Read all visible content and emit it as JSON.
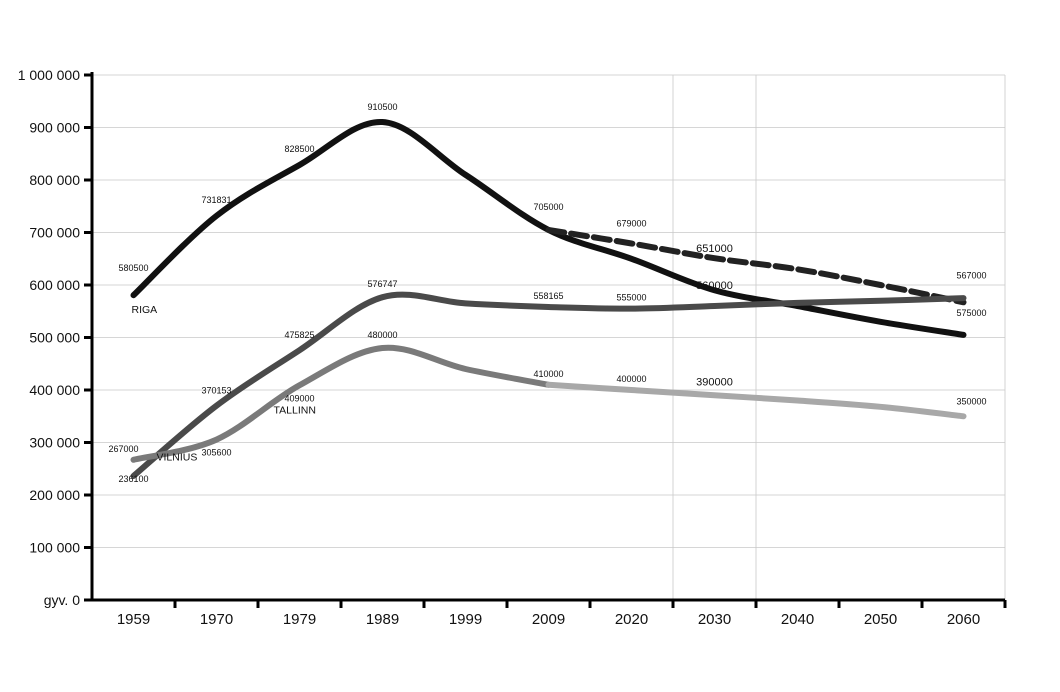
{
  "chart_data": {
    "type": "line",
    "categories": [
      "1959",
      "1970",
      "1979",
      "1989",
      "1999",
      "2009",
      "2020",
      "2030",
      "2040",
      "2050",
      "2060"
    ],
    "ylim": [
      0,
      1000000
    ],
    "y_ticks": [
      {
        "value": 0,
        "label": "gyv.  0"
      },
      {
        "value": 100000,
        "label": "100 000"
      },
      {
        "value": 200000,
        "label": "200 000"
      },
      {
        "value": 300000,
        "label": "300 000"
      },
      {
        "value": 400000,
        "label": "400 000"
      },
      {
        "value": 500000,
        "label": "500 000"
      },
      {
        "value": 600000,
        "label": "600 000"
      },
      {
        "value": 700000,
        "label": "700 000"
      },
      {
        "value": 800000,
        "label": "800 000"
      },
      {
        "value": 900000,
        "label": "900 000"
      },
      {
        "value": 1000000,
        "label": "1 000 000"
      }
    ],
    "grid": true,
    "series": [
      {
        "name": "RIGA",
        "color": "#111111",
        "style": "solid",
        "x": [
          1959,
          1970,
          1979,
          1989,
          1999,
          2009,
          2020,
          2030,
          2040,
          2050,
          2060
        ],
        "values": [
          580500,
          731831,
          828500,
          910500,
          810000,
          705000,
          650000,
          590000,
          560000,
          530000,
          505000
        ]
      },
      {
        "name": "",
        "color": "#222222",
        "style": "dashed",
        "x": [
          2009,
          2020,
          2030,
          2040,
          2050,
          2060
        ],
        "values": [
          705000,
          679000,
          651000,
          630000,
          600000,
          567000
        ]
      },
      {
        "name": "VILNIUS",
        "color": "#4a4a4a",
        "style": "solid",
        "x": [
          1959,
          1970,
          1979,
          1989,
          1999,
          2009,
          2020,
          2030,
          2040,
          2050,
          2060
        ],
        "values": [
          236100,
          370153,
          475825,
          576747,
          565000,
          558165,
          555000,
          560000,
          566000,
          570000,
          575000
        ]
      },
      {
        "name": "TALLINN",
        "color": "#7a7a7a",
        "style": "solid",
        "x": [
          1959,
          1970,
          1979,
          1989,
          1999,
          2009
        ],
        "values": [
          267000,
          305600,
          409000,
          480000,
          440000,
          410000
        ]
      },
      {
        "name": "",
        "color": "#a8a8a8",
        "style": "solid",
        "x": [
          2009,
          2020,
          2030,
          2040,
          2050,
          2060
        ],
        "values": [
          410000,
          400000,
          390000,
          380000,
          368000,
          350000
        ]
      }
    ],
    "data_labels": [
      {
        "text": "580500",
        "x": 1959,
        "y": 580500
      },
      {
        "text": "731831",
        "x": 1970,
        "y": 731831
      },
      {
        "text": "828500",
        "x": 1979,
        "y": 828500
      },
      {
        "text": "910500",
        "x": 1989,
        "y": 910500
      },
      {
        "text": "705000",
        "x": 2009,
        "y": 705000
      },
      {
        "text": "679000",
        "x": 2020,
        "y": 679000
      },
      {
        "text": "651000",
        "x": 2030,
        "y": 651000
      },
      {
        "text": "567000",
        "x": 2060,
        "y": 567000
      },
      {
        "text": "575000",
        "x": 2060,
        "y": 575000
      },
      {
        "text": "560000",
        "x": 2030,
        "y": 560000
      },
      {
        "text": "576747",
        "x": 1989,
        "y": 576747
      },
      {
        "text": "558165",
        "x": 2009,
        "y": 558165
      },
      {
        "text": "555000",
        "x": 2020,
        "y": 555000
      },
      {
        "text": "475825",
        "x": 1979,
        "y": 475825
      },
      {
        "text": "370153",
        "x": 1970,
        "y": 370153
      },
      {
        "text": "480000",
        "x": 1989,
        "y": 480000
      },
      {
        "text": "410000",
        "x": 2009,
        "y": 410000
      },
      {
        "text": "400000",
        "x": 2020,
        "y": 400000
      },
      {
        "text": "390000",
        "x": 2030,
        "y": 390000
      },
      {
        "text": "350000",
        "x": 2060,
        "y": 350000
      },
      {
        "text": "409000",
        "x": 1979,
        "y": 409000
      },
      {
        "text": "267000",
        "x": 1959,
        "y": 267000
      },
      {
        "text": "305600",
        "x": 1970,
        "y": 305600
      },
      {
        "text": "236100",
        "x": 1959,
        "y": 236100
      }
    ],
    "series_labels": [
      {
        "text": "RIGA",
        "x": 1959,
        "y": 580500
      },
      {
        "text": "VILNIUS",
        "x": 1970,
        "y": 370153
      },
      {
        "text": "TALLINN",
        "x": 1979,
        "y": 409000
      }
    ]
  }
}
